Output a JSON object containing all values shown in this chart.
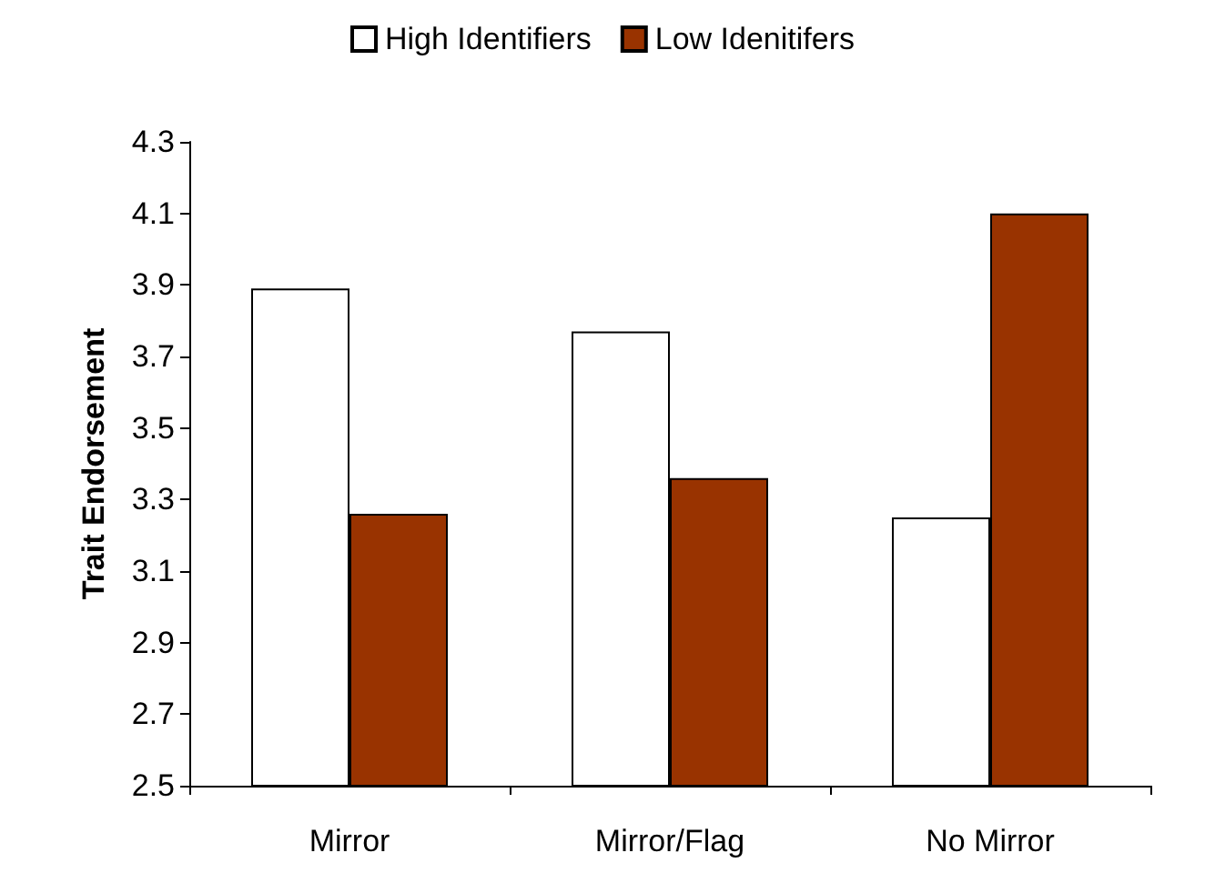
{
  "chart_data": {
    "type": "bar",
    "ylabel": "Trait Endorsement",
    "categories": [
      "Mirror",
      "Mirror/Flag",
      "No Mirror"
    ],
    "series": [
      {
        "name": "High Identifiers",
        "color": "#ffffff",
        "values": [
          3.89,
          3.77,
          3.25
        ]
      },
      {
        "name": "Low Idenitifers",
        "color": "#993300",
        "values": [
          3.26,
          3.36,
          4.1
        ]
      }
    ],
    "ylim": [
      2.5,
      4.3
    ],
    "yticks": [
      2.5,
      2.7,
      2.9,
      3.1,
      3.3,
      3.5,
      3.7,
      3.9,
      4.1,
      4.3
    ],
    "grid": false,
    "legend": "top"
  }
}
